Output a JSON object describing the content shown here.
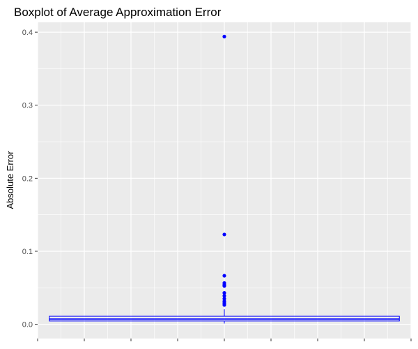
{
  "chart_data": {
    "type": "boxplot",
    "title": "Boxplot of Average Approximation Error",
    "xlabel": "",
    "ylabel": "Absolute Error",
    "ylim": [
      -0.0195,
      0.4135
    ],
    "y_ticks": [
      "0.0",
      "0.1",
      "0.2",
      "0.3",
      "0.4"
    ],
    "y_tick_values": [
      0.0,
      0.1,
      0.2,
      0.3,
      0.4
    ],
    "grid": true,
    "box": {
      "min": 0.001,
      "q1": 0.0045,
      "median": 0.0072,
      "q3": 0.011,
      "upper_whisker": 0.0205
    },
    "outliers": [
      0.394,
      0.123,
      0.0665,
      0.0565,
      0.054,
      0.0525,
      0.043,
      0.039,
      0.035,
      0.0315,
      0.029,
      0.0265
    ],
    "colors": {
      "panel": "#ebebeb",
      "grid_major": "#ffffff",
      "box": "#0000ff",
      "outlier": "#0000ff"
    }
  }
}
